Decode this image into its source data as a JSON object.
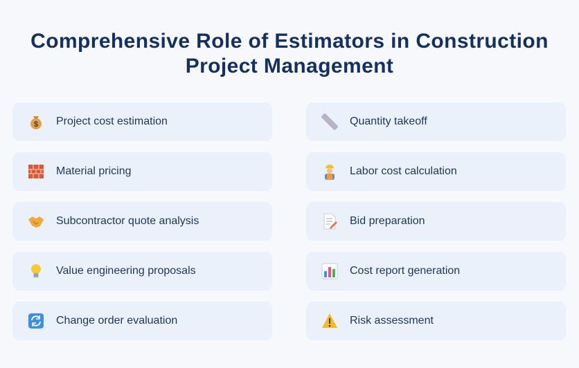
{
  "header": {
    "title": "Comprehensive Role of Estimators in Construction Project Management"
  },
  "items": [
    {
      "label": "Project cost estimation"
    },
    {
      "label": "Quantity takeoff"
    },
    {
      "label": "Material pricing"
    },
    {
      "label": "Labor cost calculation"
    },
    {
      "label": "Subcontractor quote analysis"
    },
    {
      "label": "Bid preparation"
    },
    {
      "label": "Value engineering proposals"
    },
    {
      "label": "Cost report generation"
    },
    {
      "label": "Change order evaluation"
    },
    {
      "label": "Risk assessment"
    }
  ]
}
